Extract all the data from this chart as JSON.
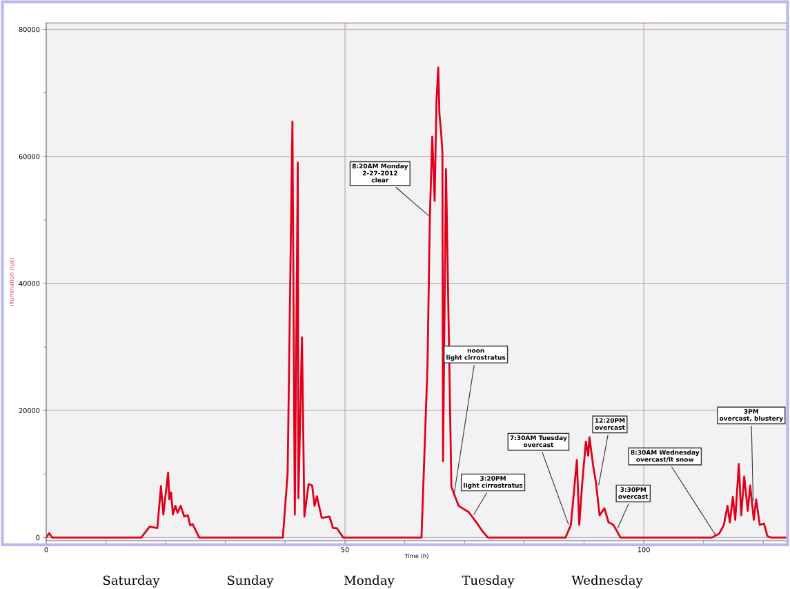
{
  "chart_data": {
    "type": "line",
    "xlabel": "Time (h)",
    "ylabel": "Illumination (lux)",
    "xlim": [
      0,
      124
    ],
    "ylim": [
      -500,
      81000
    ],
    "xticks": [
      0,
      {
        "value": 10,
        "label": null
      },
      {
        "value": 20,
        "label": null
      },
      {
        "value": 30,
        "label": null
      },
      {
        "value": 40,
        "label": null
      },
      50,
      {
        "value": 60,
        "label": null
      },
      {
        "value": 70,
        "label": null
      },
      {
        "value": 80,
        "label": null
      },
      {
        "value": 90,
        "label": null
      },
      100,
      {
        "value": 110,
        "label": null
      },
      {
        "value": 120,
        "label": null
      }
    ],
    "yticks": [
      0,
      {
        "value": 10000,
        "label": null
      },
      20000,
      {
        "value": 30000,
        "label": null
      },
      40000,
      {
        "value": 50000,
        "label": null
      },
      60000,
      {
        "value": 70000,
        "label": null
      },
      80000
    ],
    "grid": true,
    "marker": "none",
    "line_style": "solid",
    "series": [
      {
        "color": "#e0001b",
        "x": [
          0,
          0.5,
          1,
          15.9,
          17.3,
          18.6,
          19.2,
          19.6,
          20.4,
          20.6,
          20.9,
          21.2,
          21.6,
          22.0,
          22.5,
          23.1,
          23.7,
          24.1,
          24.5,
          25.6,
          39.6,
          40.4,
          41.2,
          41.6,
          42.1,
          42.2,
          42.8,
          43.2,
          43.9,
          44.5,
          44.9,
          45.3,
          46.1,
          47.4,
          48.0,
          48.6,
          49.7,
          62.8,
          63.8,
          64.2,
          64.6,
          65.0,
          65.3,
          65.6,
          65.8,
          66.1,
          66.3,
          66.4,
          66.9,
          67.8,
          69.0,
          70.7,
          71.9,
          73.0,
          73.9,
          86.9,
          87.8,
          88.8,
          89.2,
          89.7,
          90.3,
          90.7,
          90.9,
          91.5,
          92.0,
          92.6,
          93.4,
          94.1,
          94.9,
          96.1,
          111.4,
          112.6,
          113.4,
          114.0,
          114.4,
          114.9,
          115.3,
          115.9,
          116.3,
          116.8,
          117.4,
          117.8,
          118.4,
          118.8,
          119.4,
          120.1,
          120.7,
          121.3,
          124
        ],
        "values": [
          0,
          700,
          0,
          0,
          1700,
          1500,
          8100,
          3600,
          10200,
          6000,
          7100,
          3600,
          5000,
          3900,
          5000,
          3300,
          3500,
          1900,
          2100,
          0,
          0,
          10200,
          65500,
          3600,
          59000,
          6200,
          31500,
          3300,
          8400,
          8200,
          5000,
          6500,
          3100,
          3300,
          1500,
          1500,
          0,
          0,
          27000,
          50500,
          63100,
          53000,
          68500,
          74000,
          66700,
          63500,
          60600,
          12000,
          58000,
          8000,
          5000,
          4000,
          2500,
          1000,
          0,
          0,
          2000,
          12200,
          2000,
          8600,
          15100,
          12900,
          15800,
          11500,
          8600,
          3500,
          4600,
          2400,
          2000,
          0,
          0,
          600,
          2000,
          5000,
          2400,
          6400,
          2800,
          11600,
          3500,
          9600,
          4200,
          8200,
          2800,
          6000,
          2000,
          2200,
          200,
          0,
          0
        ]
      }
    ],
    "annotations": [
      {
        "text": "8:20AM Monday\n2-27-2012\nclear",
        "x": 64.2,
        "y": 50500
      },
      {
        "text": "noon\nlight cirrostratus",
        "x": 68.2,
        "y": 6500
      },
      {
        "text": "3:20PM\nlight cirrostratus",
        "x": 71.4,
        "y": 3400
      },
      {
        "text": "7:30AM Tuesday\novercast",
        "x": 87.5,
        "y": 1800
      },
      {
        "text": "12:20PM\novercast",
        "x": 92.4,
        "y": 8000
      },
      {
        "text": "3:30PM\novercast",
        "x": 95.5,
        "y": 1200
      },
      {
        "text": "8:30AM Wednesday\novercast/lt snow",
        "x": 112.2,
        "y": 100
      },
      {
        "text": "3PM\novercast, blustery",
        "x": 118.3,
        "y": 5500
      },
      "Saturday",
      "Sunday",
      "Monday",
      "Tuesday",
      "Wednesday"
    ]
  }
}
